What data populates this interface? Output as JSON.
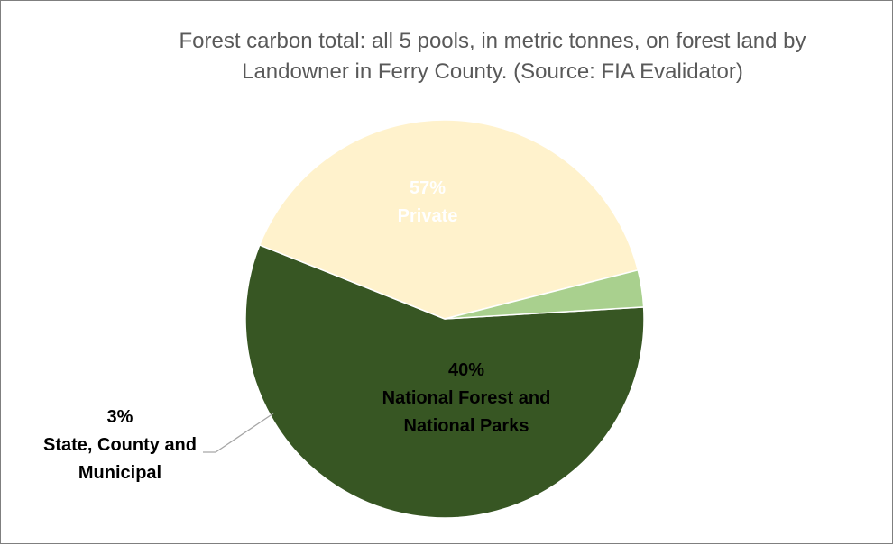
{
  "chart_data": {
    "type": "pie",
    "title": "Forest carbon total: all 5 pools, in metric tonnes, on forest land by Landowner in Ferry County.  (Source: FIA Evalidator)",
    "slices": [
      {
        "label": "Private",
        "value": 57,
        "value_label": "57%",
        "color": "#375623",
        "label_color": "#ffffff"
      },
      {
        "label": "National Forest and National Parks",
        "value": 40,
        "value_label": "40%",
        "color": "#fff2cc",
        "label_color": "#000000"
      },
      {
        "label": "State, County and Municipal",
        "value": 3,
        "value_label": "3%",
        "color": "#a9d08e",
        "label_color": "#000000"
      }
    ],
    "legend": "none",
    "slice_edge_color": "#ffffff"
  }
}
